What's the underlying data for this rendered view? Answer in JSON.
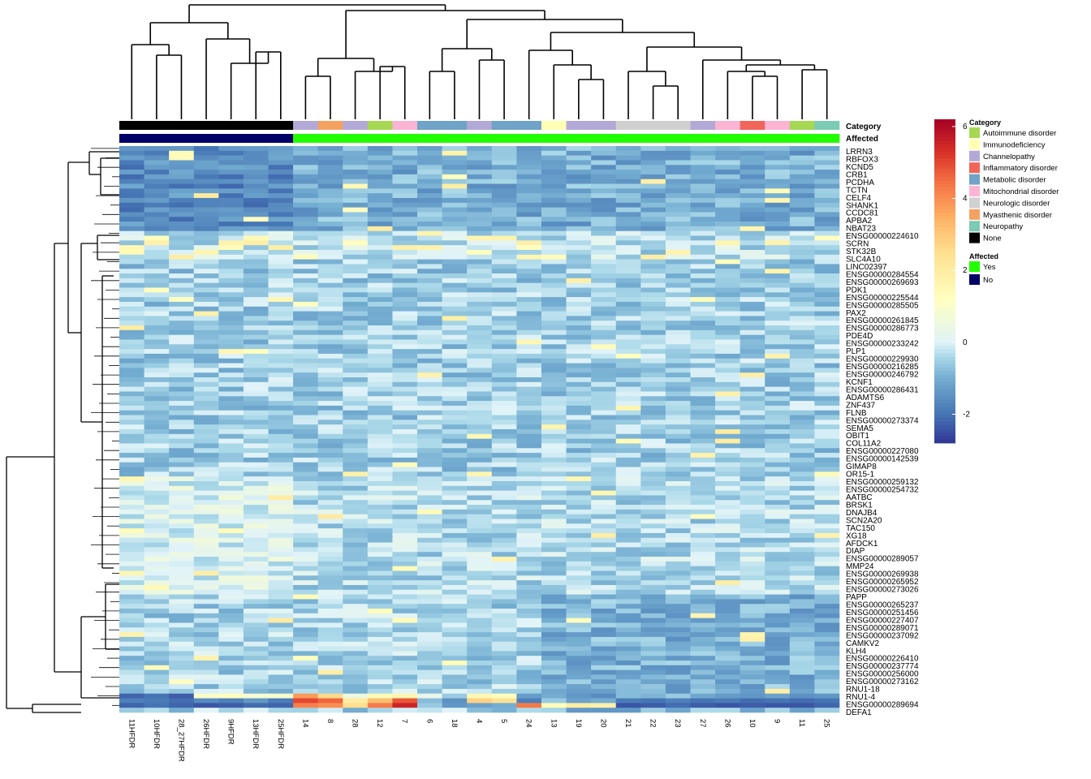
{
  "chart_data": {
    "type": "heatmap",
    "title": "",
    "columns": [
      "11HFDR",
      "10HFDR",
      "28_27HFDR",
      "26HFDR",
      "9HFDR",
      "13HFDR",
      "25HFDR",
      "14",
      "8",
      "28",
      "12",
      "7",
      "6",
      "18",
      "4",
      "5",
      "24",
      "13",
      "19",
      "20",
      "21",
      "22",
      "23",
      "27",
      "26",
      "10",
      "9",
      "11",
      "25"
    ],
    "annotations": {
      "category_label": "Category",
      "affected_label": "Affected",
      "category": [
        "None",
        "None",
        "None",
        "None",
        "None",
        "None",
        "None",
        "Channelopathy",
        "Myasthenic disorder",
        "Channelopathy",
        "Autoimmune disorder",
        "Mitochondrial disorder",
        "Metabolic disorder",
        "Metabolic disorder",
        "Channelopathy",
        "Metabolic disorder",
        "Metabolic disorder",
        "Immunodeficiency",
        "Channelopathy",
        "Channelopathy",
        "Neurologic disorder",
        "Neurologic disorder",
        "Neurologic disorder",
        "Channelopathy",
        "Mitochondrial disorder",
        "Inflammatory disorder",
        "Mitochondrial disorder",
        "Autoimmune disorder",
        "Neuropathy"
      ],
      "affected": [
        "No",
        "No",
        "No",
        "No",
        "No",
        "No",
        "No",
        "Yes",
        "Yes",
        "Yes",
        "Yes",
        "Yes",
        "Yes",
        "Yes",
        "Yes",
        "Yes",
        "Yes",
        "Yes",
        "Yes",
        "Yes",
        "Yes",
        "Yes",
        "Yes",
        "Yes",
        "Yes",
        "Yes",
        "Yes",
        "Yes",
        "Yes"
      ]
    },
    "legend": {
      "category_title": "Category",
      "category_items": [
        {
          "label": "Autoimmune disorder",
          "color": "#a6d854"
        },
        {
          "label": "Immunodeficiency",
          "color": "#ffffb3"
        },
        {
          "label": "Channelopathy",
          "color": "#b3a9d6"
        },
        {
          "label": "Inflammatory disorder",
          "color": "#f0655a"
        },
        {
          "label": "Metabolic disorder",
          "color": "#6fa3c7"
        },
        {
          "label": "Mitochondrial disorder",
          "color": "#fbb4d4"
        },
        {
          "label": "Neurologic disorder",
          "color": "#d0d0d0"
        },
        {
          "label": "Myasthenic disorder",
          "color": "#f4a262"
        },
        {
          "label": "Neuropathy",
          "color": "#7ccbb4"
        },
        {
          "label": "None",
          "color": "#000000"
        }
      ],
      "affected_title": "Affected",
      "affected_items": [
        {
          "label": "Yes",
          "color": "#22ff00"
        },
        {
          "label": "No",
          "color": "#000066"
        }
      ],
      "colorbar_ticks": [
        "6",
        "4",
        "2",
        "0",
        "-2"
      ],
      "colorbar_tick_values": [
        6,
        4,
        2,
        0,
        -2
      ],
      "value_range": [
        -2.8,
        6.2
      ]
    },
    "row_labels": [
      "LRRN3",
      "RBFOX3",
      "KCND5",
      "CRB1",
      "PCDHA",
      "TCTN",
      "CELF4",
      "SHANK1",
      "CCDC81",
      "APBA2",
      "NBAT23",
      "ENSG00000224610",
      "SCRN",
      "STK32B",
      "SLC4A10",
      "LINC02397",
      "ENSG00000284554",
      "ENSG00000269693",
      "PDK1",
      "ENSG00000225544",
      "ENSG00000285505",
      "PAX2",
      "ENSG00000261845",
      "ENSG00000286773",
      "PDE4D",
      "ENSG00000233242",
      "PLP1",
      "ENSG00000229930",
      "ENSG00000216285",
      "ENSG00000246792",
      "KCNF1",
      "ENSG00000286431",
      "ADAMTS6",
      "ZNF437",
      "FLNB",
      "ENSG00000273374",
      "SEMA5",
      "OBIT1",
      "COL11A2",
      "ENSG00000227080",
      "ENSG00000142539",
      "GIMAP8",
      "OR15-1",
      "ENSG00000259132",
      "ENSG00000254732",
      "AATBC",
      "BRSK1",
      "DNAJB4",
      "SCN2A20",
      "TAC150",
      "XG18",
      "AFDCK1",
      "DIAP",
      "ENSG00000289057",
      "MMP24",
      "ENSG00000269938",
      "ENSG00000265952",
      "ENSG00000273026",
      "PAPP",
      "ENSG00000265237",
      "ENSG00000251456",
      "ENSG00000227407",
      "ENSG00000289071",
      "ENSG00000237092",
      "CAMKV2",
      "KLH4",
      "ENSG00000226410",
      "ENSG00000237774",
      "ENSG00000256000",
      "ENSG00000273162",
      "RNU1-18",
      "RNU1-4",
      "ENSG00000289694",
      "DEFA1"
    ],
    "row_label_font_px": 10,
    "row_label_note": "labels overlap heavily in source; only a subset listed"
  }
}
